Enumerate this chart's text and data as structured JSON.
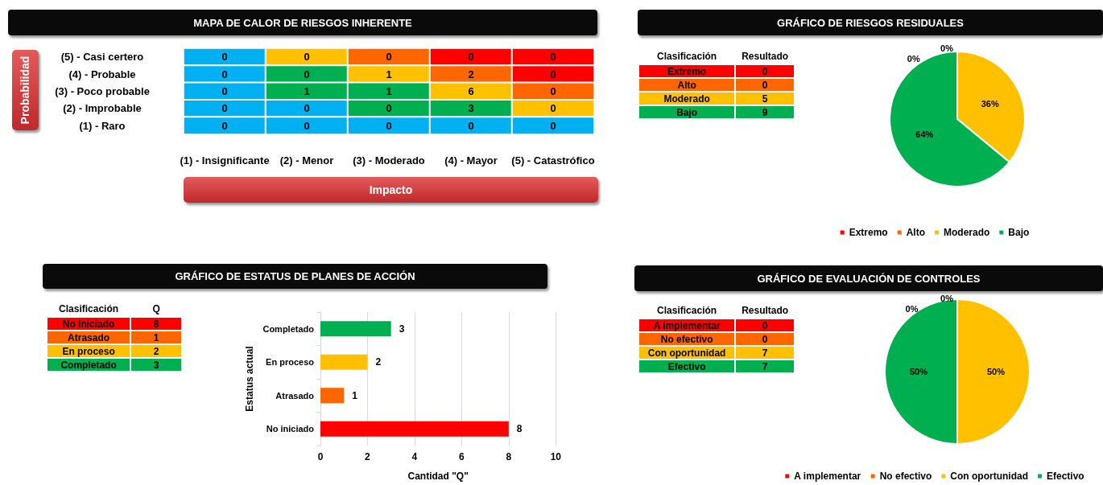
{
  "chart_data": [
    {
      "type": "heatmap",
      "title": "MAPA DE CALOR DE RIESGOS INHERENTE",
      "ylabel": "Probabilidad",
      "xlabel": "Impacto",
      "data_labels": true,
      "categories": [
        "(1) - Insignificante",
        "(2) - Menor",
        "(3) - Moderado",
        "(4) - Mayor",
        "(5) - Catastrófico"
      ],
      "y_categories": [
        "(5) - Casi certero",
        "(4) - Probable",
        "(3) - Poco probable",
        "(2) - Improbable",
        "(1) - Raro"
      ],
      "cells": [
        [
          0,
          0,
          0,
          0,
          0
        ],
        [
          0,
          0,
          1,
          2,
          0
        ],
        [
          0,
          1,
          1,
          6,
          0
        ],
        [
          0,
          0,
          0,
          3,
          0
        ],
        [
          0,
          0,
          0,
          0,
          0
        ]
      ],
      "colors": [
        [
          "#00b0f0",
          "#ffc000",
          "#ff6600",
          "#ff0000",
          "#ff0000"
        ],
        [
          "#00b0f0",
          "#00b050",
          "#ffc000",
          "#ff6600",
          "#ff0000"
        ],
        [
          "#00b0f0",
          "#00b050",
          "#00b050",
          "#ffc000",
          "#ff6600"
        ],
        [
          "#00b0f0",
          "#00b0f0",
          "#00b050",
          "#00b050",
          "#ffc000"
        ],
        [
          "#00b0f0",
          "#00b0f0",
          "#00b0f0",
          "#00b0f0",
          "#00b0f0"
        ]
      ]
    },
    {
      "type": "other",
      "data_labels": true,
      "annotations": [
        "Clasificación",
        "Resultado"
      ],
      "categories": [
        "Extremo",
        "Alto",
        "Moderado",
        "Bajo"
      ],
      "values": [
        0,
        0,
        5,
        9
      ],
      "colors": [
        "#ff0000",
        "#ff6600",
        "#ffc000",
        "#00b050"
      ]
    },
    {
      "type": "pie",
      "title": "GRÁFICO DE RIESGOS RESIDUALES",
      "categories": [
        "Extremo",
        "Alto",
        "Moderado",
        "Bajo"
      ],
      "values": [
        0,
        0,
        36,
        64
      ],
      "colors": [
        "#ff0000",
        "#ff6600",
        "#ffc000",
        "#00b050"
      ],
      "value_labels": [
        "0%",
        "0%",
        "36%",
        "64%"
      ],
      "legend": "bottom"
    },
    {
      "type": "other",
      "data_labels": true,
      "annotations": [
        "Clasificación",
        "Q"
      ],
      "categories": [
        "No iniciado",
        "Atrasado",
        "En proceso",
        "Completado"
      ],
      "values": [
        8,
        1,
        2,
        3
      ],
      "colors": [
        "#ff0000",
        "#ff6600",
        "#ffc000",
        "#00b050"
      ]
    },
    {
      "type": "bar",
      "orientation": "horizontal",
      "title": "GRÁFICO DE ESTATUS DE PLANES DE ACCIÓN",
      "xlabel": "Cantidad \"Q\"",
      "ylabel": "Estatus actual",
      "categories": [
        "Completado",
        "En proceso",
        "Atrasado",
        "No iniciado"
      ],
      "values": [
        3,
        2,
        1,
        8
      ],
      "colors": [
        "#00b050",
        "#ffc000",
        "#ff6600",
        "#ff0000"
      ],
      "xlim": [
        0,
        10
      ],
      "xticks": [
        0,
        2,
        4,
        6,
        8,
        10
      ],
      "grid": "x",
      "data_labels": true
    },
    {
      "type": "other",
      "data_labels": true,
      "annotations": [
        "Clasificación",
        "Resultado"
      ],
      "categories": [
        "A implementar",
        "No efectivo",
        "Con oportunidad",
        "Efectivo"
      ],
      "values": [
        0,
        0,
        7,
        7
      ],
      "colors": [
        "#ff0000",
        "#ff6600",
        "#ffc000",
        "#00b050"
      ]
    },
    {
      "type": "pie",
      "title": "GRÁFICO DE EVALUACIÓN DE CONTROLES",
      "categories": [
        "A implementar",
        "No efectivo",
        "Con oportunidad",
        "Efectivo"
      ],
      "values": [
        0,
        0,
        50,
        50
      ],
      "colors": [
        "#ff0000",
        "#ff6600",
        "#ffc000",
        "#00b050"
      ],
      "value_labels": [
        "0%",
        "0%",
        "50%",
        "50%"
      ],
      "legend": "bottom"
    }
  ]
}
